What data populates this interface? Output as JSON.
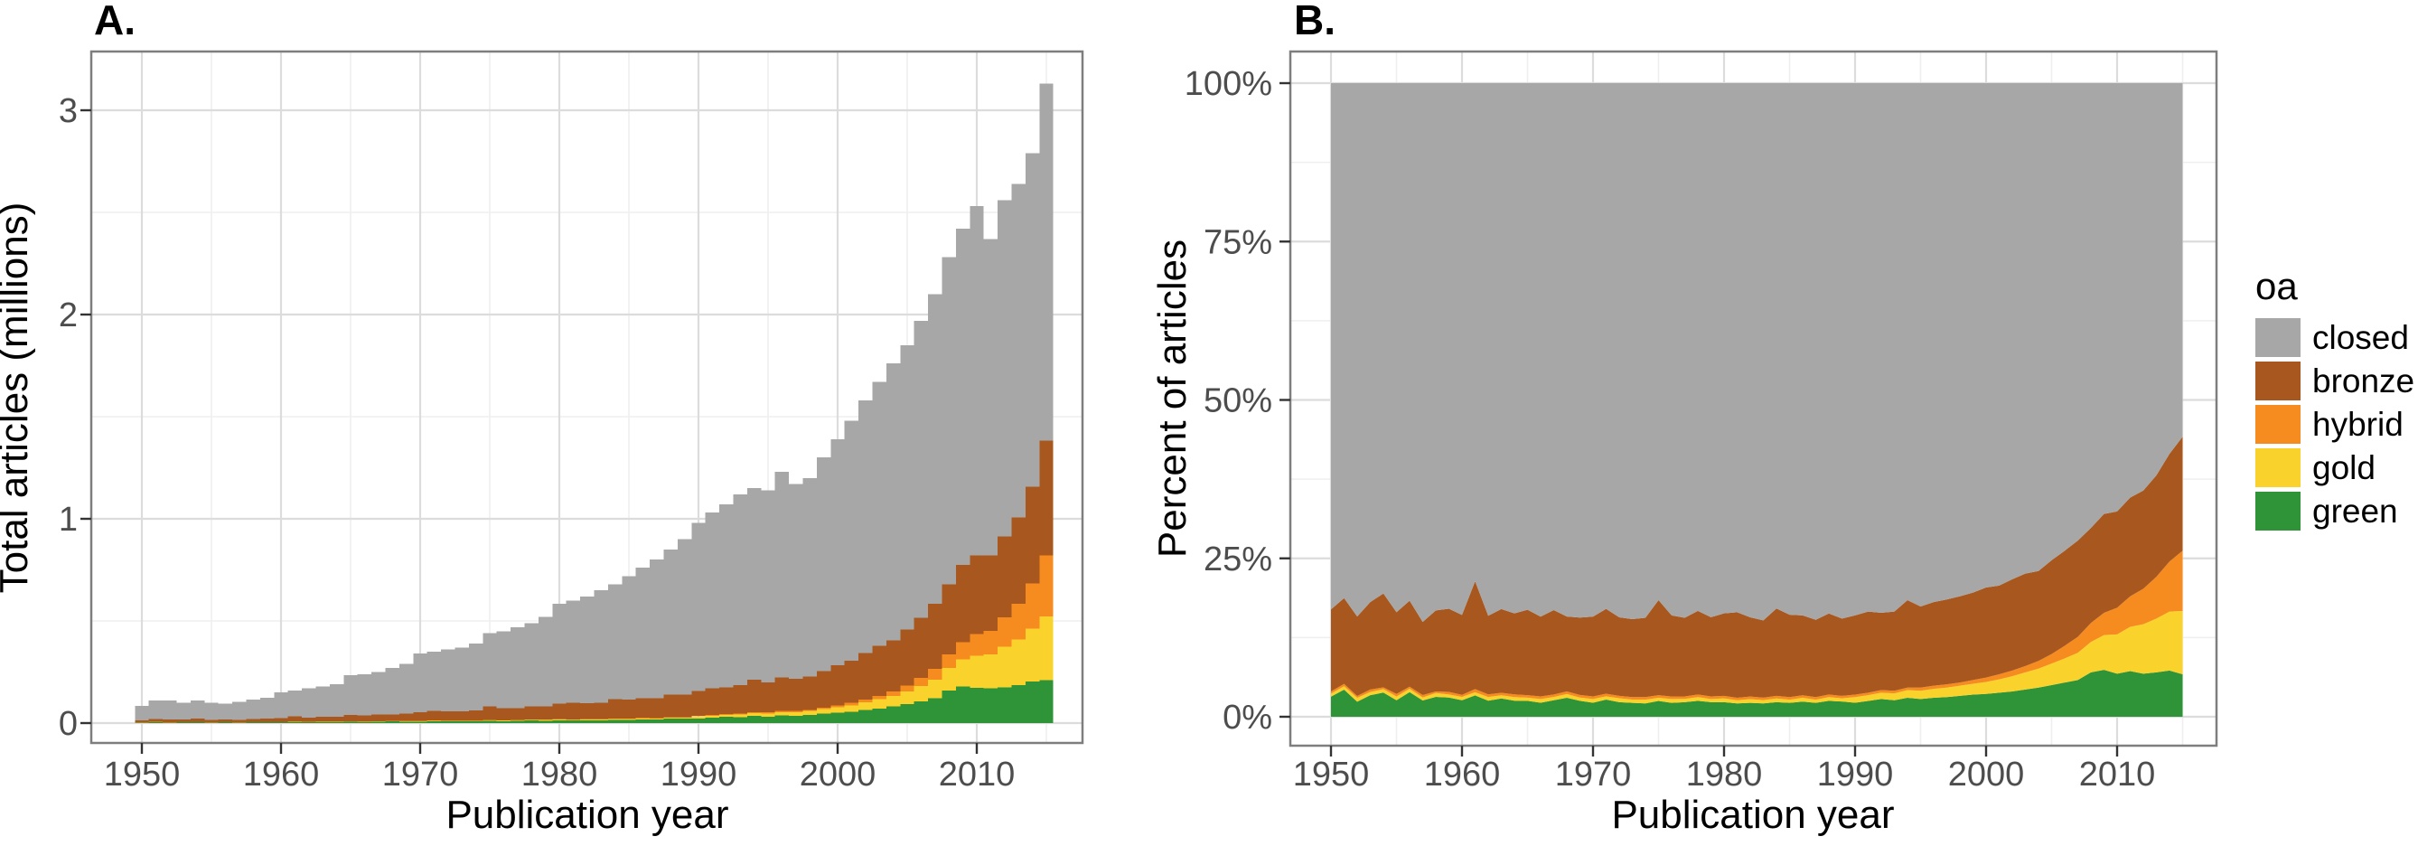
{
  "legend": {
    "title": "oa",
    "entries": [
      {
        "label": "closed",
        "color": "#A7A7A7"
      },
      {
        "label": "bronze",
        "color": "#A8581E"
      },
      {
        "label": "hybrid",
        "color": "#F68B1F"
      },
      {
        "label": "gold",
        "color": "#F9D32C"
      },
      {
        "label": "green",
        "color": "#2E9437"
      }
    ]
  },
  "chart_data": [
    {
      "type": "bar",
      "stacked": true,
      "panel_label": "A.",
      "xlabel": "Publication year",
      "ylabel": "Total articles (millions)",
      "unit": "millions of articles per year",
      "ylim": [
        0,
        3.29
      ],
      "x_ticks": [
        1950,
        1960,
        1970,
        1980,
        1990,
        2000,
        2010
      ],
      "x_tick_labels": [
        "1950",
        "1960",
        "1970",
        "1980",
        "1990",
        "2000",
        "2010"
      ],
      "y_ticks": [
        0,
        1,
        2,
        3
      ],
      "y_tick_labels": [
        "0",
        "1",
        "2",
        "3"
      ],
      "grid": true,
      "x": [
        1950,
        1951,
        1952,
        1953,
        1954,
        1955,
        1956,
        1957,
        1958,
        1959,
        1960,
        1961,
        1962,
        1963,
        1964,
        1965,
        1966,
        1967,
        1968,
        1969,
        1970,
        1971,
        1972,
        1973,
        1974,
        1975,
        1976,
        1977,
        1978,
        1979,
        1980,
        1981,
        1982,
        1983,
        1984,
        1985,
        1986,
        1987,
        1988,
        1989,
        1990,
        1991,
        1992,
        1993,
        1994,
        1995,
        1996,
        1997,
        1998,
        1999,
        2000,
        2001,
        2002,
        2003,
        2004,
        2005,
        2006,
        2007,
        2008,
        2009,
        2010,
        2011,
        2012,
        2013,
        2014,
        2015
      ],
      "series_order_note": "bottom to top stacking order",
      "series": [
        {
          "name": "green",
          "color": "#2E9437",
          "values": [
            0.0027,
            0.0047,
            0.0026,
            0.0034,
            0.0042,
            0.0026,
            0.0037,
            0.0027,
            0.0036,
            0.0038,
            0.0039,
            0.0054,
            0.0043,
            0.0052,
            0.0048,
            0.0059,
            0.0053,
            0.0065,
            0.0081,
            0.0073,
            0.0075,
            0.0095,
            0.0083,
            0.0081,
            0.0082,
            0.011,
            0.0099,
            0.0108,
            0.0123,
            0.012,
            0.0135,
            0.0126,
            0.0136,
            0.0137,
            0.0156,
            0.0158,
            0.0182,
            0.0176,
            0.0213,
            0.0216,
            0.0216,
            0.0258,
            0.03,
            0.0291,
            0.0345,
            0.0319,
            0.0369,
            0.0363,
            0.0396,
            0.0455,
            0.05,
            0.0562,
            0.0632,
            0.0718,
            0.081,
            0.0925,
            0.1064,
            0.1218,
            0.1596,
            0.1791,
            0.172,
            0.1706,
            0.1741,
            0.1848,
            0.2037,
            0.2097
          ]
        },
        {
          "name": "gold",
          "color": "#F9D32C",
          "values": [
            0.0004,
            0.0006,
            0.0007,
            0.0005,
            0.0006,
            0.0006,
            0.0005,
            0.0005,
            0.0007,
            0.0006,
            0.0008,
            0.0008,
            0.001,
            0.0009,
            0.0011,
            0.0012,
            0.0014,
            0.0013,
            0.0016,
            0.0015,
            0.002,
            0.0018,
            0.0022,
            0.0019,
            0.0023,
            0.0022,
            0.0027,
            0.0024,
            0.0029,
            0.0026,
            0.0035,
            0.003,
            0.0037,
            0.0033,
            0.0041,
            0.0036,
            0.0046,
            0.004,
            0.0051,
            0.0045,
            0.0088,
            0.0093,
            0.0107,
            0.0123,
            0.0138,
            0.0148,
            0.0172,
            0.0176,
            0.0192,
            0.0221,
            0.0264,
            0.0311,
            0.0379,
            0.0451,
            0.0528,
            0.0629,
            0.0749,
            0.0903,
            0.1094,
            0.1331,
            0.1569,
            0.1659,
            0.1997,
            0.2244,
            0.2595,
            0.313
          ]
        },
        {
          "name": "hybrid",
          "color": "#F68B1F",
          "values": [
            0.0003,
            0.0004,
            0.0003,
            0.0004,
            0.0003,
            0.0004,
            0.0003,
            0.0004,
            0.0003,
            0.0005,
            0.0005,
            0.0008,
            0.0007,
            0.0007,
            0.0008,
            0.0009,
            0.001,
            0.001,
            0.0011,
            0.0012,
            0.0014,
            0.0014,
            0.0014,
            0.0015,
            0.0016,
            0.0018,
            0.0018,
            0.0019,
            0.002,
            0.0021,
            0.0023,
            0.0024,
            0.0025,
            0.0026,
            0.0027,
            0.0029,
            0.003,
            0.0032,
            0.0034,
            0.0036,
            0.0039,
            0.0041,
            0.0043,
            0.0045,
            0.0046,
            0.0057,
            0.0062,
            0.0059,
            0.006,
            0.0078,
            0.0097,
            0.0118,
            0.0142,
            0.0167,
            0.0211,
            0.0278,
            0.0394,
            0.0525,
            0.0684,
            0.0847,
            0.1063,
            0.1138,
            0.1434,
            0.1742,
            0.2204,
            0.2974
          ]
        },
        {
          "name": "bronze",
          "color": "#A8581E",
          "values": [
            0.011,
            0.0149,
            0.0138,
            0.0138,
            0.0163,
            0.0129,
            0.0129,
            0.0121,
            0.0147,
            0.0164,
            0.0189,
            0.0272,
            0.0211,
            0.0238,
            0.0243,
            0.0317,
            0.0302,
            0.0333,
            0.0319,
            0.0354,
            0.0428,
            0.0469,
            0.0446,
            0.0455,
            0.0488,
            0.066,
            0.0576,
            0.0583,
            0.0647,
            0.065,
            0.0761,
            0.081,
            0.0775,
            0.0793,
            0.0938,
            0.0936,
            0.0958,
            0.0976,
            0.1088,
            0.1098,
            0.1225,
            0.1318,
            0.1305,
            0.14,
            0.1587,
            0.1459,
            0.1624,
            0.1568,
            0.1632,
            0.1794,
            0.1974,
            0.2072,
            0.2275,
            0.2438,
            0.2499,
            0.2738,
            0.2955,
            0.3192,
            0.342,
            0.3775,
            0.3846,
            0.3697,
            0.3968,
            0.4224,
            0.4743,
            0.5634
          ]
        },
        {
          "name": "closed",
          "color": "#A7A7A7",
          "values": [
            0.0706,
            0.0894,
            0.0926,
            0.0819,
            0.0886,
            0.0835,
            0.0776,
            0.0893,
            0.0957,
            0.1037,
            0.1259,
            0.1258,
            0.1429,
            0.1494,
            0.159,
            0.1953,
            0.2021,
            0.2079,
            0.2273,
            0.2446,
            0.2863,
            0.2904,
            0.3035,
            0.313,
            0.3291,
            0.359,
            0.378,
            0.3966,
            0.4081,
            0.4383,
            0.4896,
            0.501,
            0.5227,
            0.5511,
            0.5638,
            0.6041,
            0.6384,
            0.6776,
            0.7114,
            0.7605,
            0.8232,
            0.859,
            0.8945,
            0.9341,
            0.9384,
            0.9417,
            1.0073,
            0.9534,
            0.972,
            1.0452,
            1.1065,
            1.1737,
            1.2372,
            1.2926,
            1.3552,
            1.393,
            1.4538,
            1.5162,
            1.6006,
            1.6456,
            1.7102,
            1.55,
            1.646,
            1.6342,
            1.6321,
            1.7465
          ]
        }
      ]
    },
    {
      "type": "area",
      "stacked": true,
      "normalized_percent": true,
      "panel_label": "B.",
      "xlabel": "Publication year",
      "ylabel": "Percent of articles",
      "ylim": [
        0,
        100
      ],
      "x_ticks": [
        1950,
        1960,
        1970,
        1980,
        1990,
        2000,
        2010
      ],
      "x_tick_labels": [
        "1950",
        "1960",
        "1970",
        "1980",
        "1990",
        "2000",
        "2010"
      ],
      "y_ticks": [
        0,
        25,
        50,
        75,
        100
      ],
      "y_tick_labels": [
        "0%",
        "25%",
        "50%",
        "75%",
        "100%"
      ],
      "grid": true,
      "series_source": "chart_data[0].series normalized to percent of each year's total"
    }
  ]
}
